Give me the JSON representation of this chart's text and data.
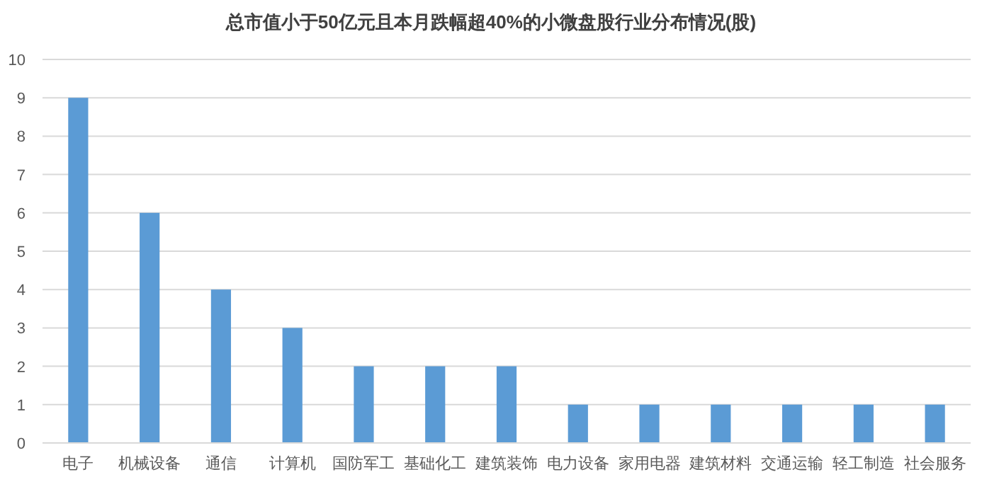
{
  "chart_data": {
    "type": "bar",
    "title": "总市值小于50亿元且本月跌幅超40%的小微盘股行业分布情况(股)",
    "categories": [
      "电子",
      "机械设备",
      "通信",
      "计算机",
      "国防军工",
      "基础化工",
      "建筑装饰",
      "电力设备",
      "家用电器",
      "建筑材料",
      "交通运输",
      "轻工制造",
      "社会服务"
    ],
    "values": [
      9,
      6,
      4,
      3,
      2,
      2,
      2,
      1,
      1,
      1,
      1,
      1,
      1
    ],
    "color": "#5b9bd5",
    "ylim": [
      0,
      10
    ],
    "yticks": [
      0,
      1,
      2,
      3,
      4,
      5,
      6,
      7,
      8,
      9,
      10
    ],
    "grid": "y"
  }
}
